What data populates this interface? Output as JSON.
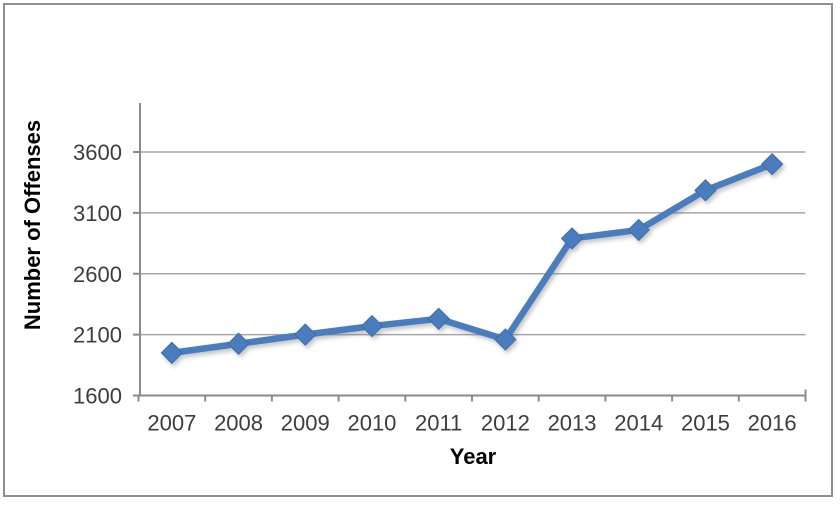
{
  "frame": {
    "background": "#ffffff",
    "border_color": "#8f8f8f"
  },
  "chart_data": {
    "type": "line",
    "title": "",
    "xlabel": "Year",
    "ylabel": "Number of Offenses",
    "categories": [
      "2007",
      "2008",
      "2009",
      "2010",
      "2011",
      "2012",
      "2013",
      "2014",
      "2015",
      "2016"
    ],
    "series": [
      {
        "values": [
          1950,
          2025,
          2100,
          2170,
          2230,
          2060,
          2890,
          2960,
          3285,
          3500
        ]
      }
    ],
    "y_ticks": [
      1600,
      2100,
      2600,
      3100,
      3600
    ],
    "ylim": [
      1600,
      3600
    ],
    "grid": "horizontal",
    "legend_position": "none",
    "marker_shape": "diamond",
    "colors": {
      "line": "#4a7dbd",
      "marker": "#4a7dbd",
      "marker_edge": "#3e6ca8",
      "gridline": "#a6a6a6",
      "axis_line": "#8a8a8a",
      "tick_label": "#3d3d3d",
      "axis_title": "#000000"
    }
  }
}
